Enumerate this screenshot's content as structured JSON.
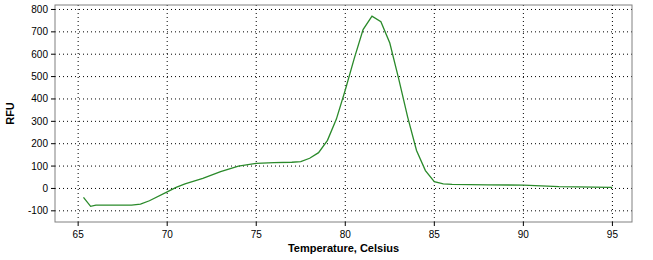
{
  "chart_data": {
    "type": "line",
    "x_label": "Temperature, Celsius",
    "y_label": "RFU",
    "x": [
      65.3,
      65.7,
      66,
      67,
      68,
      68.5,
      69,
      70,
      70.5,
      71,
      72,
      73,
      74,
      75,
      76,
      77,
      77.5,
      78,
      78.5,
      79,
      79.5,
      80,
      80.5,
      81,
      81.5,
      82,
      82.5,
      83,
      83.5,
      84,
      84.5,
      85,
      85.5,
      86,
      88,
      90,
      92,
      95
    ],
    "values": [
      -40,
      -80,
      -75,
      -75,
      -75,
      -70,
      -55,
      -15,
      5,
      20,
      45,
      75,
      100,
      112,
      115,
      117,
      120,
      135,
      160,
      215,
      310,
      440,
      580,
      710,
      770,
      745,
      650,
      490,
      320,
      170,
      80,
      30,
      20,
      18,
      16,
      15,
      8,
      5
    ],
    "color": "#2a8a2a",
    "xlim": [
      63.7,
      96.1
    ],
    "ylim": [
      -150,
      820
    ],
    "xticks": [
      65,
      70,
      75,
      80,
      85,
      90,
      95
    ],
    "yticks": [
      -100,
      0,
      100,
      200,
      300,
      400,
      500,
      600,
      700,
      800
    ],
    "grid": true
  }
}
